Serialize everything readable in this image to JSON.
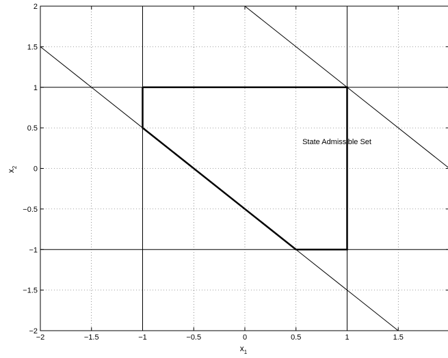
{
  "chart_data": {
    "type": "line",
    "xlim": [
      -2,
      2
    ],
    "ylim": [
      -2,
      2
    ],
    "grid": true,
    "xticks": [
      -2,
      -1.5,
      -1,
      -0.5,
      0,
      0.5,
      1,
      1.5
    ],
    "yticks": [
      -2,
      -1.5,
      -1,
      -0.5,
      0,
      0.5,
      1,
      1.5,
      2
    ],
    "xtick_labels": [
      "−2",
      "−1.5",
      "−1",
      "−0.5",
      "0",
      "0.5",
      "1",
      "1.5"
    ],
    "ytick_labels": [
      "−2",
      "−1.5",
      "−1",
      "−0.5",
      "0",
      "0.5",
      "1",
      "1.5",
      "2"
    ],
    "xlabel": "x",
    "xlabel_sub": "1",
    "ylabel": "x",
    "ylabel_sub": "2",
    "series": [
      {
        "style": "thin",
        "x": [
          -1,
          -1
        ],
        "y": [
          -2,
          2
        ]
      },
      {
        "style": "thin",
        "x": [
          1,
          1
        ],
        "y": [
          -2,
          2
        ]
      },
      {
        "style": "thin",
        "x": [
          -2,
          2
        ],
        "y": [
          1,
          1
        ]
      },
      {
        "style": "thin",
        "x": [
          -2,
          2
        ],
        "y": [
          -1,
          -1
        ]
      },
      {
        "style": "thin",
        "x": [
          -2,
          1.5
        ],
        "y": [
          1.5,
          -2
        ]
      },
      {
        "style": "thin",
        "x": [
          0,
          2
        ],
        "y": [
          2,
          0
        ]
      },
      {
        "style": "thick",
        "x": [
          -1,
          1,
          1,
          0.5,
          -1,
          -1
        ],
        "y": [
          1,
          1,
          -1,
          -1,
          0.5,
          1
        ]
      }
    ],
    "annotations": [
      {
        "text": "State Admissible Set",
        "x": 0.9,
        "y": 0.3
      }
    ]
  }
}
